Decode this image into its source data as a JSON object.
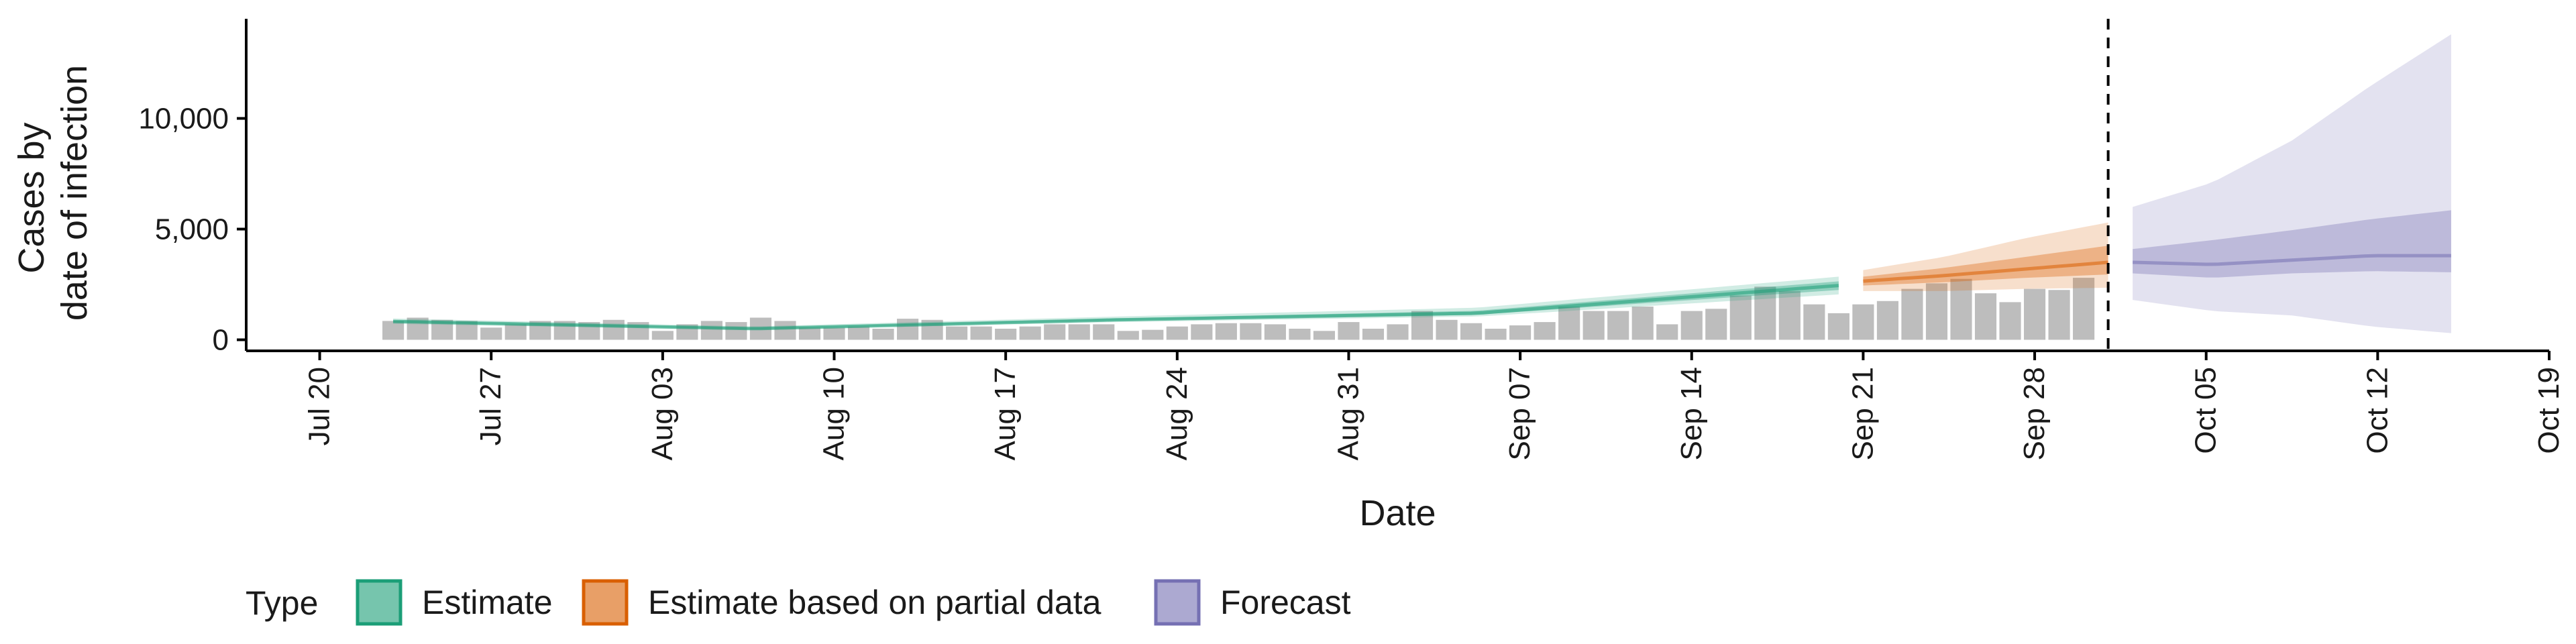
{
  "chart_data": {
    "type": "area",
    "xlabel": "Date",
    "ylabel": [
      "Cases by",
      "date of infection"
    ],
    "x_range": [
      "2020-07-17",
      "2020-10-19"
    ],
    "x_ticks": [
      {
        "date": "2020-07-20",
        "label": "Jul 20"
      },
      {
        "date": "2020-07-27",
        "label": "Jul 27"
      },
      {
        "date": "2020-08-03",
        "label": "Aug 03"
      },
      {
        "date": "2020-08-10",
        "label": "Aug 10"
      },
      {
        "date": "2020-08-17",
        "label": "Aug 17"
      },
      {
        "date": "2020-08-24",
        "label": "Aug 24"
      },
      {
        "date": "2020-08-31",
        "label": "Aug 31"
      },
      {
        "date": "2020-09-07",
        "label": "Sep 07"
      },
      {
        "date": "2020-09-14",
        "label": "Sep 14"
      },
      {
        "date": "2020-09-21",
        "label": "Sep 21"
      },
      {
        "date": "2020-09-28",
        "label": "Sep 28"
      },
      {
        "date": "2020-10-05",
        "label": "Oct 05"
      },
      {
        "date": "2020-10-12",
        "label": "Oct 12"
      },
      {
        "date": "2020-10-19",
        "label": "Oct 19"
      }
    ],
    "y_range": [
      -500,
      14500
    ],
    "y_ticks": [
      {
        "value": 0,
        "label": "0"
      },
      {
        "value": 5000,
        "label": "5,000"
      },
      {
        "value": 10000,
        "label": "10,000"
      }
    ],
    "grid": false,
    "reference_line": {
      "date": "2020-10-01",
      "style": "dashed"
    },
    "reported_cases": {
      "start_date": "2020-07-23",
      "color": "#bdbdbd",
      "values": [
        850,
        1000,
        900,
        850,
        550,
        700,
        850,
        850,
        800,
        900,
        800,
        400,
        700,
        850,
        800,
        1000,
        850,
        550,
        550,
        600,
        500,
        950,
        900,
        600,
        600,
        500,
        600,
        700,
        700,
        700,
        400,
        450,
        600,
        700,
        750,
        750,
        700,
        500,
        400,
        800,
        500,
        700,
        1300,
        900,
        750,
        500,
        650,
        800,
        1500,
        1300,
        1300,
        1500,
        700,
        1300,
        1400,
        2000,
        2400,
        2200,
        1600,
        1200,
        1600,
        1750,
        2300,
        2550,
        2750,
        2100,
        1700,
        2300,
        2250,
        2800
      ]
    },
    "series": [
      {
        "name": "Estimate",
        "color": "#1b9e77",
        "start_date": "2020-07-23",
        "end_date": "2020-09-20",
        "median": [
          830,
          500,
          900,
          1200,
          2450
        ],
        "band_50": [
          [
            780,
            880
          ],
          [
            470,
            540
          ],
          [
            860,
            960
          ],
          [
            1130,
            1310
          ],
          [
            2250,
            2640
          ]
        ],
        "band_90": [
          [
            720,
            960
          ],
          [
            430,
            600
          ],
          [
            800,
            1050
          ],
          [
            1050,
            1450
          ],
          [
            2050,
            2850
          ]
        ]
      },
      {
        "name": "Estimate based on partial data",
        "color": "#d95f02",
        "start_date": "2020-09-21",
        "end_date": "2020-10-01",
        "median": [
          2650,
          2900,
          3200,
          3500
        ],
        "band_50": [
          [
            2450,
            2850
          ],
          [
            2600,
            3250
          ],
          [
            2800,
            3750
          ],
          [
            2950,
            4250
          ]
        ],
        "band_90": [
          [
            2200,
            3150
          ],
          [
            2200,
            3750
          ],
          [
            2300,
            4600
          ],
          [
            2350,
            5300
          ]
        ]
      },
      {
        "name": "Forecast",
        "color": "#7570b3",
        "start_date": "2020-10-02",
        "end_date": "2020-10-15",
        "median": [
          3500,
          3400,
          3600,
          3800,
          3800
        ],
        "band_50": [
          [
            3000,
            4100
          ],
          [
            2800,
            4500
          ],
          [
            3000,
            4950
          ],
          [
            3100,
            5450
          ],
          [
            3050,
            5850
          ]
        ],
        "band_90": [
          [
            1800,
            6000
          ],
          [
            1300,
            7100
          ],
          [
            1100,
            9000
          ],
          [
            600,
            11500
          ],
          [
            300,
            13800
          ]
        ]
      }
    ],
    "legend": {
      "title": "Type",
      "position": "bottom",
      "entries": [
        "Estimate",
        "Estimate based on partial data",
        "Forecast"
      ]
    }
  }
}
